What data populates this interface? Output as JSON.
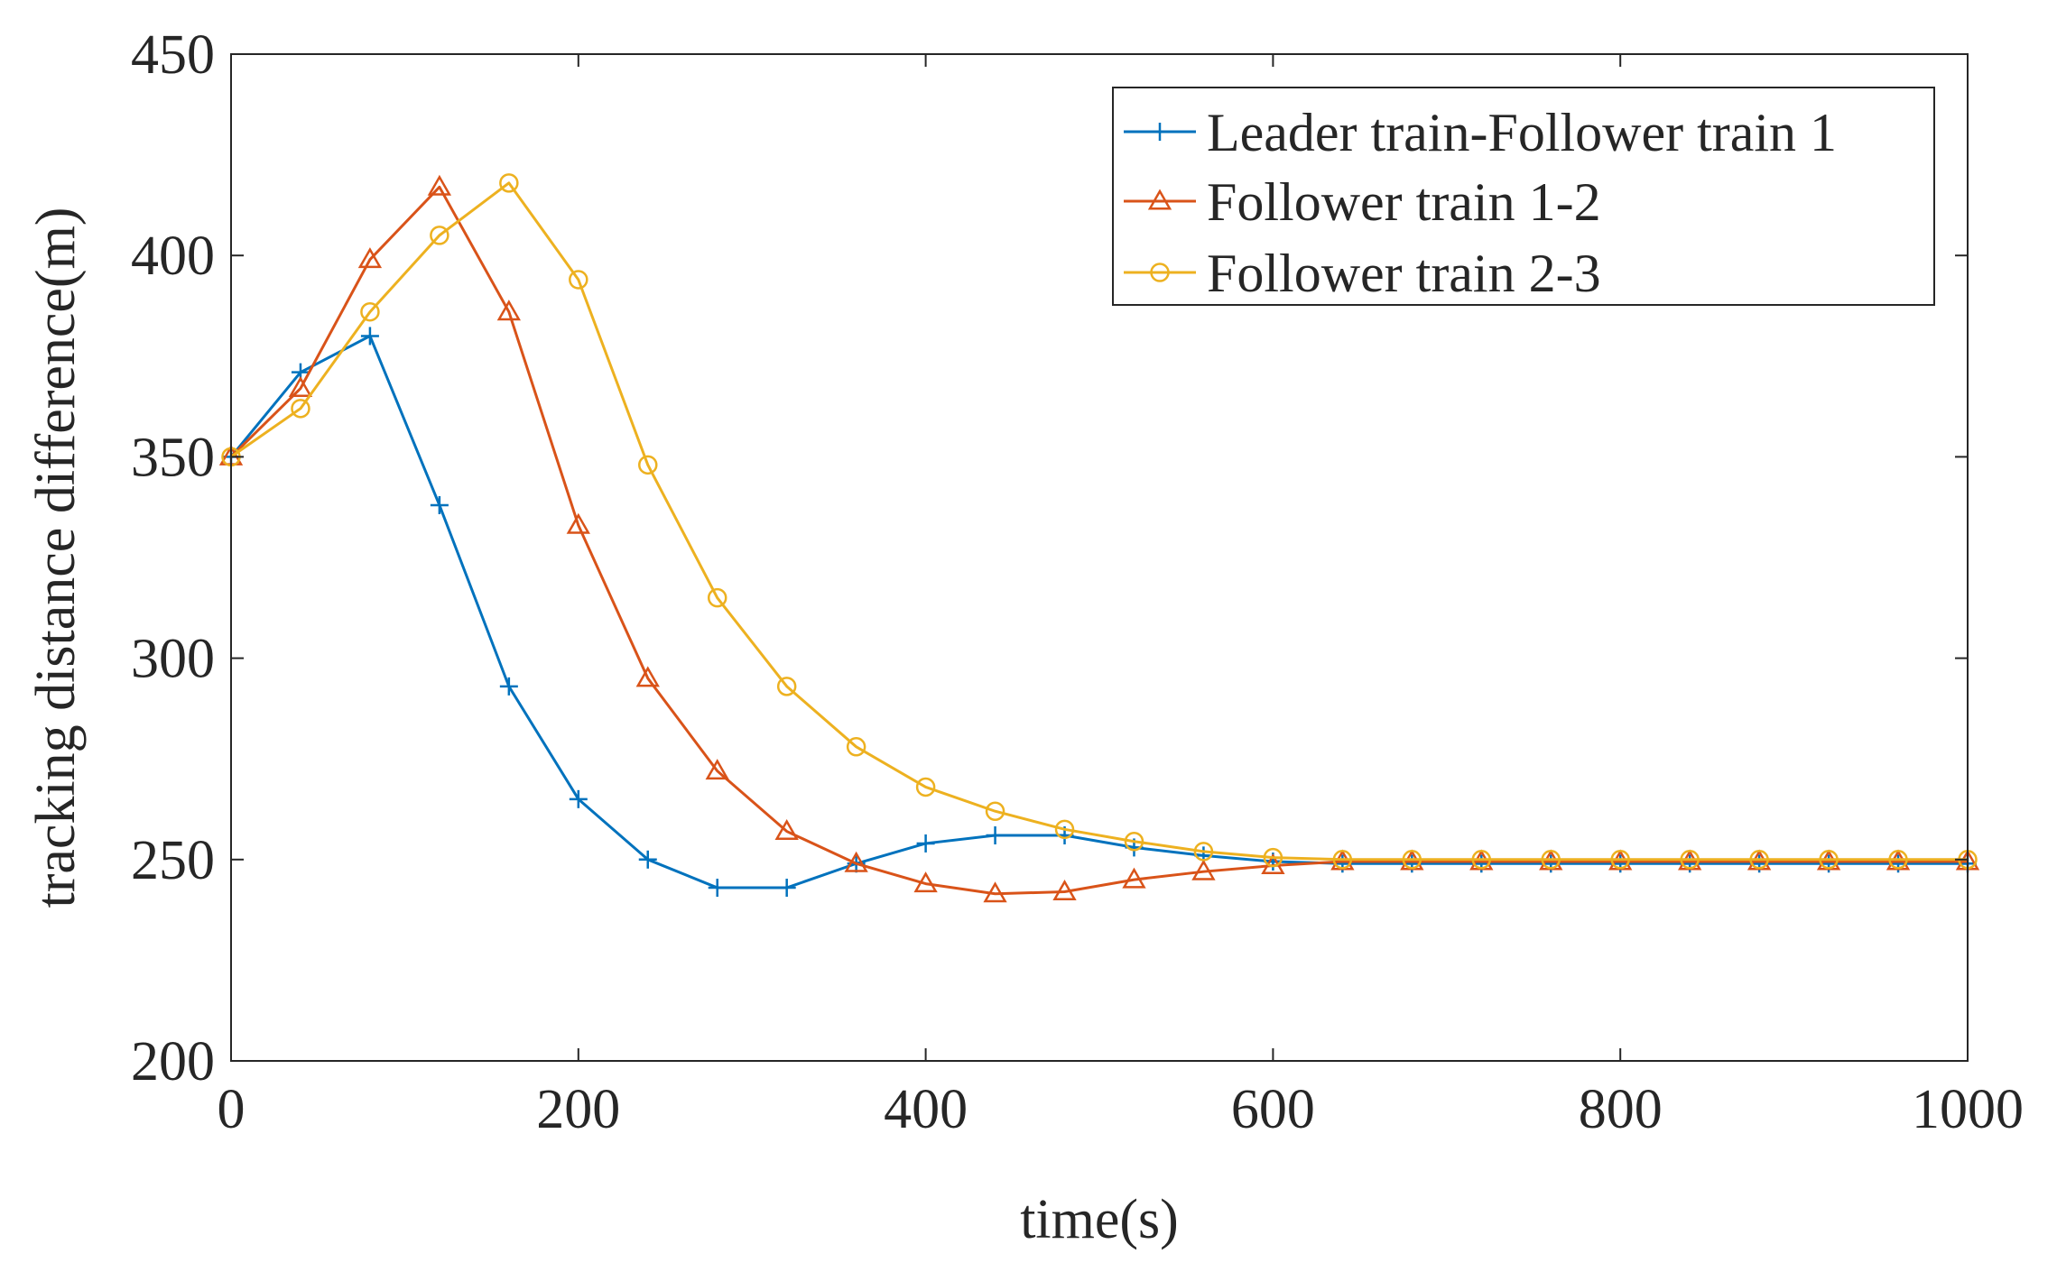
{
  "chart_data": {
    "type": "line",
    "title": "",
    "xlabel": "time(s)",
    "ylabel": "tracking distance difference(m)",
    "xlim": [
      0,
      1000
    ],
    "ylim": [
      200,
      450
    ],
    "xticks": [
      0,
      200,
      400,
      600,
      800,
      1000
    ],
    "yticks": [
      200,
      250,
      300,
      350,
      400,
      450
    ],
    "grid": false,
    "legend_position": "top-right",
    "x": [
      0,
      40,
      80,
      120,
      160,
      200,
      240,
      280,
      320,
      360,
      400,
      440,
      480,
      520,
      560,
      600,
      640,
      680,
      720,
      760,
      800,
      840,
      880,
      920,
      960,
      1000
    ],
    "series": [
      {
        "name": "Leader train-Follower train 1",
        "color": "#0072BD",
        "marker": "plus",
        "values": [
          350,
          371,
          380,
          338,
          293,
          265,
          250,
          243,
          243,
          249,
          254,
          256,
          256,
          253,
          251,
          249.5,
          249,
          249,
          249,
          249,
          249,
          249,
          249,
          249,
          249,
          249
        ]
      },
      {
        "name": "Follower train 1-2",
        "color": "#D95319",
        "marker": "triangle",
        "values": [
          350,
          367,
          399,
          417,
          386,
          333,
          295,
          272,
          257,
          249,
          244,
          241.5,
          242,
          245,
          247,
          248.5,
          249.5,
          249.5,
          249.5,
          249.5,
          249.5,
          249.5,
          249.5,
          249.5,
          249.5,
          249.5
        ]
      },
      {
        "name": "Follower train 2-3",
        "color": "#EDB120",
        "marker": "circle",
        "values": [
          350,
          362,
          386,
          405,
          418,
          394,
          348,
          315,
          293,
          278,
          268,
          262,
          257.5,
          254.5,
          252,
          250.5,
          250,
          250,
          250,
          250,
          250,
          250,
          250,
          250,
          250,
          250
        ]
      }
    ]
  }
}
